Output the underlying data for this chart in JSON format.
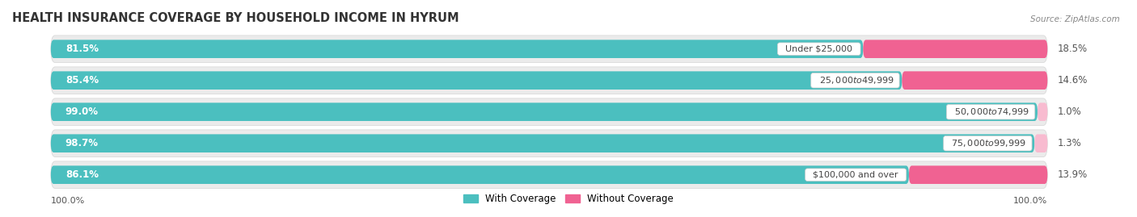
{
  "title": "HEALTH INSURANCE COVERAGE BY HOUSEHOLD INCOME IN HYRUM",
  "source": "Source: ZipAtlas.com",
  "categories": [
    "Under $25,000",
    "$25,000 to $49,999",
    "$50,000 to $74,999",
    "$75,000 to $99,999",
    "$100,000 and over"
  ],
  "with_coverage": [
    81.5,
    85.4,
    99.0,
    98.7,
    86.1
  ],
  "without_coverage": [
    18.5,
    14.6,
    1.0,
    1.3,
    13.9
  ],
  "color_with": "#4bbfbf",
  "color_without_large": "#f06292",
  "color_without_small": "#f8bbd0",
  "small_threshold": 5.0,
  "row_bg": "#e8e8e8",
  "legend_with": "With Coverage",
  "legend_without": "Without Coverage",
  "axis_label_left": "100.0%",
  "axis_label_right": "100.0%",
  "title_fontsize": 10.5,
  "source_fontsize": 7.5,
  "label_fontsize": 8.0,
  "bar_label_fontsize": 8.5,
  "category_fontsize": 8.0
}
